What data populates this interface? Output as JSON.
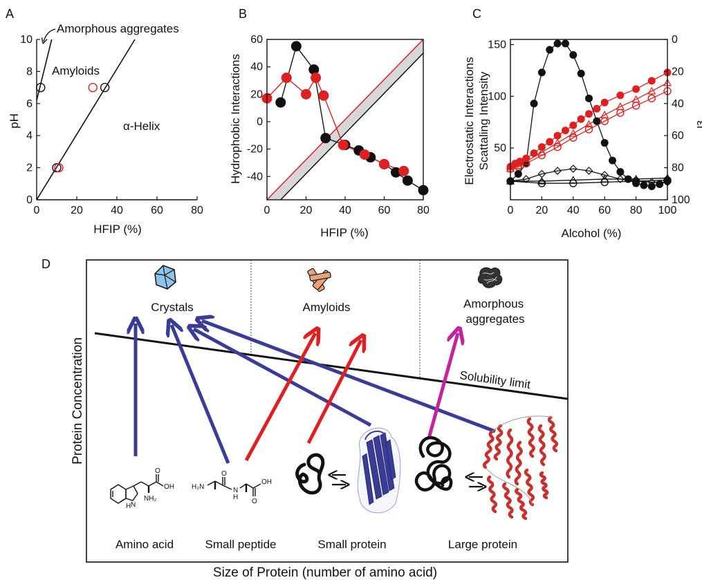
{
  "panels": {
    "a": {
      "letter": "A"
    },
    "b": {
      "letter": "B"
    },
    "c": {
      "letter": "C"
    },
    "d": {
      "letter": "D"
    }
  },
  "colors": {
    "black": "#111111",
    "red": "#e02020",
    "blue": "#3a3d96",
    "magenta": "#c2259b",
    "gray": "#bdbdbd"
  },
  "chart_data": [
    {
      "panel": "A",
      "type": "scatter",
      "xlabel": "HFIP (%)",
      "ylabel": "pH",
      "xlim": [
        0,
        80
      ],
      "ylim": [
        0,
        10
      ],
      "xticks": [
        0,
        20,
        40,
        60,
        80
      ],
      "yticks": [
        0,
        2,
        4,
        6,
        8,
        10
      ],
      "annotations": {
        "amorphous": "Amorphous aggregates",
        "amyloids": "Amyloids",
        "helix": "α-Helix"
      },
      "lines": [
        {
          "name": "Amorphous aggregates boundary",
          "color": "black",
          "x": [
            0,
            7.5
          ],
          "y": [
            6.2,
            10
          ]
        },
        {
          "name": "Amyloid/helix boundary",
          "color": "black",
          "x": [
            0,
            49
          ],
          "y": [
            0,
            10
          ]
        }
      ],
      "series": [
        {
          "color": "black",
          "marker": "open-circle",
          "x": [
            2,
            34,
            10
          ],
          "y": [
            7,
            7,
            2
          ]
        },
        {
          "color": "red",
          "marker": "open-circle",
          "x": [
            28,
            11
          ],
          "y": [
            7,
            2
          ]
        }
      ]
    },
    {
      "panel": "B",
      "type": "line",
      "xlabel": "HFIP (%)",
      "ylabel": "Hydrophobic Interactions",
      "xlim": [
        0,
        80
      ],
      "ylim": [
        -57,
        60
      ],
      "xticks": [
        0,
        20,
        40,
        60,
        80
      ],
      "yticks": [
        -40,
        -20,
        0,
        20,
        40,
        60
      ],
      "series": [
        {
          "color": "black",
          "marker": "filled-circle",
          "x": [
            7,
            15,
            24,
            30,
            40,
            47,
            53,
            60,
            66,
            72,
            80
          ],
          "y": [
            14,
            55,
            38,
            -12,
            -17,
            -21,
            -26,
            -31,
            -37,
            -43,
            -50
          ]
        },
        {
          "color": "red",
          "marker": "filled-circle",
          "x": [
            0,
            10,
            20,
            25,
            29,
            39,
            50,
            60,
            70
          ],
          "y": [
            17,
            32,
            20,
            32,
            19,
            -17,
            -24,
            -31,
            -36
          ]
        }
      ],
      "reference_lines": [
        {
          "color": "red",
          "x": [
            0,
            80
          ],
          "y": [
            -57,
            60
          ]
        },
        {
          "color": "black",
          "x": [
            7,
            80
          ],
          "y": [
            -57,
            50
          ]
        }
      ]
    },
    {
      "panel": "C",
      "type": "line",
      "xlabel": "Alcohol (%)",
      "ylabel": "Scattaling Intensity",
      "ylabel_outer": "Electrostatic Interactions",
      "y2label": "εr",
      "xlim": [
        0,
        100
      ],
      "ylim": [
        0,
        155
      ],
      "y2lim": [
        100,
        0
      ],
      "xticks": [
        0,
        20,
        40,
        60,
        80,
        100
      ],
      "yticks": [
        50,
        100,
        150
      ],
      "y2ticks": [
        0,
        20,
        40,
        60,
        80,
        100
      ],
      "series": [
        {
          "color": "black",
          "marker": "filled-circle",
          "x": [
            0,
            5,
            10,
            15,
            20,
            25,
            30,
            35,
            40,
            45,
            50,
            55,
            60,
            65,
            70,
            75,
            80,
            85,
            90,
            95,
            100
          ],
          "y": [
            18,
            25,
            35,
            93,
            123,
            145,
            151,
            151,
            140,
            122,
            98,
            76,
            55,
            38,
            27,
            20,
            16,
            14,
            13,
            15,
            18
          ]
        },
        {
          "color": "red",
          "marker": "filled-circle",
          "x": [
            0,
            3,
            6,
            10,
            15,
            20,
            25,
            30,
            35,
            40,
            45,
            50,
            55,
            60,
            70,
            80,
            90,
            100
          ],
          "y": [
            32,
            35,
            37,
            40,
            45,
            51,
            56,
            62,
            67,
            72,
            78,
            83,
            88,
            94,
            101,
            107,
            115,
            123
          ]
        },
        {
          "color": "red",
          "marker": "open-triangle",
          "x": [
            0,
            5,
            10,
            20,
            30,
            40,
            50,
            60,
            70,
            80,
            90,
            100
          ],
          "y": [
            30,
            33,
            37,
            46,
            55,
            64,
            73,
            82,
            90,
            97,
            105,
            113
          ]
        },
        {
          "color": "red",
          "marker": "open-circle",
          "x": [
            0,
            5,
            10,
            20,
            30,
            40,
            50,
            60,
            70,
            80,
            90,
            100
          ],
          "y": [
            30,
            32,
            35,
            43,
            51,
            60,
            68,
            76,
            84,
            91,
            98,
            105
          ]
        },
        {
          "color": "black",
          "marker": "open-diamond",
          "x": [
            0,
            10,
            20,
            30,
            40,
            50,
            60,
            70,
            80,
            90,
            100
          ],
          "y": [
            18,
            20,
            25,
            28,
            30,
            28,
            24,
            20,
            18,
            17,
            17
          ]
        },
        {
          "color": "black",
          "marker": "open-triangle",
          "x": [
            0,
            20,
            40,
            60,
            80,
            100
          ],
          "y": [
            18,
            18,
            19,
            20,
            20,
            21
          ]
        },
        {
          "color": "black",
          "marker": "open-circle",
          "x": [
            0,
            20,
            40,
            60,
            80,
            100
          ],
          "y": [
            18,
            16,
            16,
            17,
            18,
            19
          ]
        }
      ]
    }
  ],
  "schematic": {
    "ylabel": "Protein Concentration",
    "xlabel": "Size of Protein (number of amino acid)",
    "phases": {
      "crystals": "Crystals",
      "amyloids": "Amyloids",
      "amorphous": "Amorphous\naggregates"
    },
    "solubility": "Solubility limit",
    "species": {
      "amino_acid": "Amino acid",
      "small_peptide": "Small peptide",
      "small_protein": "Small protein",
      "large_protein": "Large protein"
    },
    "chem": {
      "nh2": "NH₂",
      "oh": "OH",
      "h2n": "H₂N",
      "o": "O",
      "n": "N",
      "h": "H"
    }
  }
}
